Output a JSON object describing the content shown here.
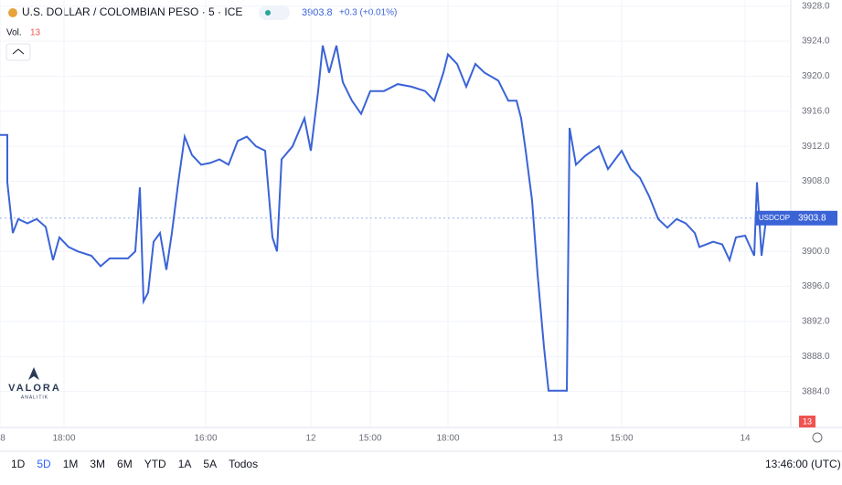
{
  "header": {
    "title": "U.S. DOLLAR / COLOMBIAN PESO · 5 · ICE",
    "change": "+0.3 (+0.01%)",
    "vol_label": "Vol.",
    "vol_value": "13"
  },
  "chart_data": {
    "type": "line",
    "symbol": "USDCOP",
    "last_price": 3903.8,
    "color": "#3a63d6",
    "x": [
      0,
      1.6,
      1.6,
      2.8,
      4,
      6,
      8,
      10,
      11.6,
      13,
      15,
      17,
      20,
      22,
      24,
      28,
      29.6,
      30.6,
      31.4,
      32.4,
      33.6,
      35,
      36.4,
      37.6,
      39,
      40.4,
      42,
      44,
      46,
      48,
      50,
      52,
      54,
      56,
      58,
      59.6,
      60.6,
      61.6,
      64,
      66.6,
      68,
      69.6,
      70.6,
      72,
      73.6,
      75,
      77,
      79,
      81,
      84,
      87,
      90,
      93,
      95,
      97,
      98,
      100,
      102,
      104,
      106,
      109,
      111.2,
      113,
      114,
      115,
      116.4,
      117.6,
      119,
      120,
      124,
      124.6,
      126,
      128,
      131,
      133,
      136,
      138,
      140,
      142,
      144,
      146,
      148,
      150,
      152,
      153,
      156,
      158,
      159.6,
      161,
      163,
      165,
      165.6,
      166.6,
      167.6,
      169
    ],
    "values": [
      3913.3,
      3913.3,
      3907.9,
      3902.1,
      3903.7,
      3903.2,
      3903.7,
      3902.8,
      3899.0,
      3901.6,
      3900.5,
      3900.0,
      3899.5,
      3898.3,
      3899.2,
      3899.2,
      3900.0,
      3907.3,
      3894.3,
      3895.3,
      3901.1,
      3902.1,
      3897.9,
      3902.1,
      3907.9,
      3913.1,
      3911.0,
      3909.9,
      3910.1,
      3910.5,
      3909.9,
      3912.6,
      3913.1,
      3912.0,
      3911.5,
      3901.6,
      3900.0,
      3910.5,
      3912.0,
      3915.2,
      3911.5,
      3918.3,
      3923.5,
      3920.4,
      3923.5,
      3919.3,
      3917.2,
      3915.7,
      3918.3,
      3918.3,
      3919.1,
      3918.8,
      3918.3,
      3917.2,
      3920.4,
      3922.5,
      3921.4,
      3918.8,
      3921.4,
      3920.4,
      3919.5,
      3917.2,
      3917.2,
      3915.2,
      3911.5,
      3905.8,
      3897.4,
      3889.1,
      3884.1,
      3884.1,
      3914.1,
      3909.9,
      3910.9,
      3912.0,
      3909.4,
      3911.5,
      3909.4,
      3908.4,
      3906.3,
      3903.7,
      3902.7,
      3903.7,
      3903.2,
      3902.1,
      3900.5,
      3901.1,
      3900.8,
      3899.0,
      3901.6,
      3901.8,
      3899.5,
      3907.9,
      3899.5,
      3903.7,
      3903.8
    ],
    "xlim": [
      0,
      173
    ],
    "ylim": [
      3879.9,
      3928.7
    ],
    "xticks": [
      {
        "value": 0,
        "label": "8"
      },
      {
        "value": 14,
        "label": "18:00"
      },
      {
        "value": 45,
        "label": "16:00"
      },
      {
        "value": 68,
        "label": "12"
      },
      {
        "value": 81,
        "label": "15:00"
      },
      {
        "value": 98,
        "label": "18:00"
      },
      {
        "value": 122,
        "label": "13"
      },
      {
        "value": 136,
        "label": "15:00"
      },
      {
        "value": 163,
        "label": "14"
      }
    ],
    "yticks": [
      {
        "value": 3928,
        "label": "3928.0"
      },
      {
        "value": 3924,
        "label": "3924.0"
      },
      {
        "value": 3920,
        "label": "3920.0"
      },
      {
        "value": 3916,
        "label": "3916.0"
      },
      {
        "value": 3912,
        "label": "3912.0"
      },
      {
        "value": 3908,
        "label": "3908.0"
      },
      {
        "value": 3900,
        "label": "3900.0"
      },
      {
        "value": 3896,
        "label": "3896.0"
      },
      {
        "value": 3892,
        "label": "3892.0"
      },
      {
        "value": 3888,
        "label": "3888.0"
      },
      {
        "value": 3884,
        "label": "3884.0"
      }
    ],
    "grid": true
  },
  "logo": {
    "name": "VALORA",
    "tagline": "ANALITIK"
  },
  "toolbar": {
    "ranges": [
      "1D",
      "5D",
      "1M",
      "3M",
      "6M",
      "YTD",
      "1A",
      "5A",
      "Todos"
    ],
    "active": 1,
    "clock": "13:46:00 (UTC)"
  }
}
